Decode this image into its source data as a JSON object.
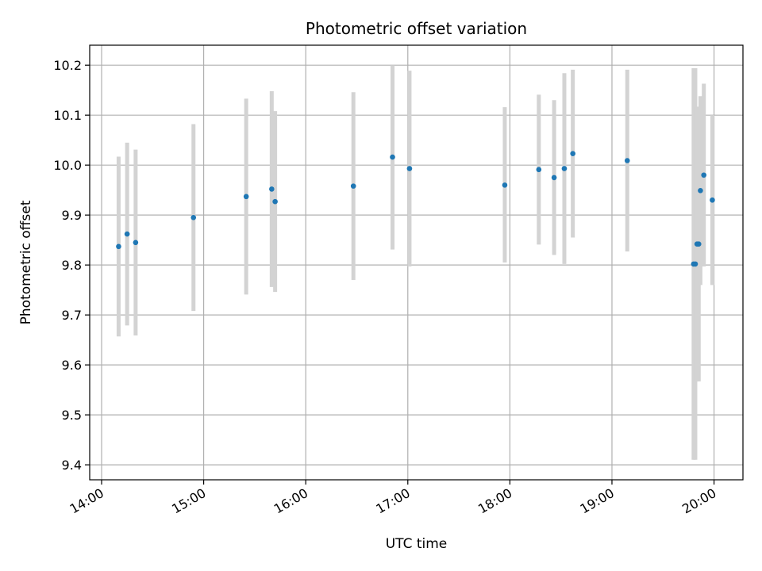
{
  "chart_data": {
    "type": "scatter",
    "title": "Photometric offset variation",
    "xlabel": "UTC time",
    "ylabel": "Photometric offset",
    "grid": true,
    "legend": "none",
    "xlim": [
      "13:53",
      "20:17"
    ],
    "ylim": [
      9.37,
      10.24
    ],
    "x_ticks": [
      "14:00",
      "15:00",
      "16:00",
      "17:00",
      "18:00",
      "19:00",
      "20:00"
    ],
    "y_ticks": [
      "9.4",
      "9.5",
      "9.6",
      "9.7",
      "9.8",
      "9.9",
      "10.0",
      "10.1",
      "10.2"
    ],
    "colors": {
      "point": "#1f77b4",
      "errorbar": "#d3d3d3",
      "grid": "#b0b0b0"
    },
    "points": [
      {
        "x": "14:10",
        "y": 9.837,
        "lo": 9.657,
        "hi": 10.017
      },
      {
        "x": "14:15",
        "y": 9.862,
        "lo": 9.679,
        "hi": 10.045
      },
      {
        "x": "14:20",
        "y": 9.845,
        "lo": 9.659,
        "hi": 10.031
      },
      {
        "x": "14:54",
        "y": 9.895,
        "lo": 9.708,
        "hi": 10.082
      },
      {
        "x": "15:25",
        "y": 9.937,
        "lo": 9.741,
        "hi": 10.133
      },
      {
        "x": "15:40",
        "y": 9.952,
        "lo": 9.756,
        "hi": 10.148
      },
      {
        "x": "15:42",
        "y": 9.927,
        "lo": 9.746,
        "hi": 10.108
      },
      {
        "x": "16:28",
        "y": 9.958,
        "lo": 9.77,
        "hi": 10.146
      },
      {
        "x": "16:51",
        "y": 10.016,
        "lo": 9.831,
        "hi": 10.2
      },
      {
        "x": "17:01",
        "y": 9.993,
        "lo": 9.797,
        "hi": 10.189
      },
      {
        "x": "17:57",
        "y": 9.96,
        "lo": 9.805,
        "hi": 10.116
      },
      {
        "x": "18:17",
        "y": 9.991,
        "lo": 9.841,
        "hi": 10.141
      },
      {
        "x": "18:26",
        "y": 9.975,
        "lo": 9.82,
        "hi": 10.13
      },
      {
        "x": "18:32",
        "y": 9.993,
        "lo": 9.802,
        "hi": 10.184
      },
      {
        "x": "18:37",
        "y": 10.023,
        "lo": 9.855,
        "hi": 10.191
      },
      {
        "x": "19:09",
        "y": 10.009,
        "lo": 9.827,
        "hi": 10.191
      },
      {
        "x": "19:48",
        "y": 9.802,
        "lo": 9.41,
        "hi": 10.194
      },
      {
        "x": "19:49",
        "y": 9.802,
        "lo": 9.41,
        "hi": 10.194
      },
      {
        "x": "19:50",
        "y": 9.842,
        "lo": 9.567,
        "hi": 10.117
      },
      {
        "x": "19:51",
        "y": 9.842,
        "lo": 9.567,
        "hi": 10.117
      },
      {
        "x": "19:52",
        "y": 9.949,
        "lo": 9.76,
        "hi": 10.138
      },
      {
        "x": "19:54",
        "y": 9.98,
        "lo": 9.797,
        "hi": 10.163
      },
      {
        "x": "19:59",
        "y": 9.93,
        "lo": 9.76,
        "hi": 10.1
      }
    ]
  }
}
